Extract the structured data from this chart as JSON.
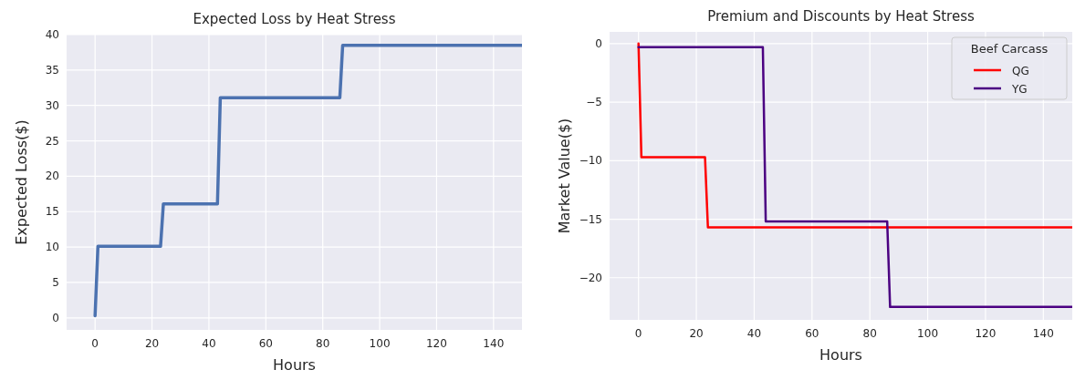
{
  "chart_data": [
    {
      "type": "line",
      "title": "Expected Loss by Heat Stress",
      "xlabel": "Hours",
      "ylabel": "Expected Loss($)",
      "xlim": [
        -10,
        150
      ],
      "ylim": [
        -1.7,
        40
      ],
      "xticks": [
        0,
        20,
        40,
        60,
        80,
        100,
        120,
        140
      ],
      "yticks": [
        0,
        5,
        10,
        15,
        20,
        25,
        30,
        35,
        40
      ],
      "grid": true,
      "legend": false,
      "series": [
        {
          "color": "#4c72b0",
          "x": [
            0,
            1,
            23,
            24,
            43,
            44,
            86,
            87,
            150
          ],
          "values": [
            0.3,
            10.1,
            10.1,
            16.1,
            16.1,
            31.1,
            31.1,
            38.5,
            38.5
          ]
        }
      ]
    },
    {
      "type": "line",
      "title": "Premium and Discounts by Heat Stress",
      "xlabel": "Hours",
      "ylabel": "Market Value($)",
      "legend_title": "Beef Carcass",
      "xlim": [
        -10,
        150
      ],
      "ylim": [
        -23.6,
        1
      ],
      "xticks": [
        0,
        20,
        40,
        60,
        80,
        100,
        120,
        140
      ],
      "yticks": [
        {
          "value": -20,
          "label": "−20"
        },
        {
          "value": -15,
          "label": "−15"
        },
        {
          "value": -10,
          "label": "−10"
        },
        {
          "value": -5,
          "label": "−5"
        },
        0
      ],
      "grid": true,
      "legend": "top right",
      "series": [
        {
          "name": "QG",
          "color": "#ff0000",
          "x": [
            0,
            1,
            23,
            24,
            150
          ],
          "values": [
            0,
            -9.7,
            -9.7,
            -15.7,
            -15.7
          ]
        },
        {
          "name": "YG",
          "color": "#4b0082",
          "x": [
            0,
            43,
            44,
            86,
            87,
            150
          ],
          "values": [
            -0.3,
            -0.3,
            -15.2,
            -15.2,
            -22.5,
            -22.5
          ]
        }
      ]
    }
  ]
}
